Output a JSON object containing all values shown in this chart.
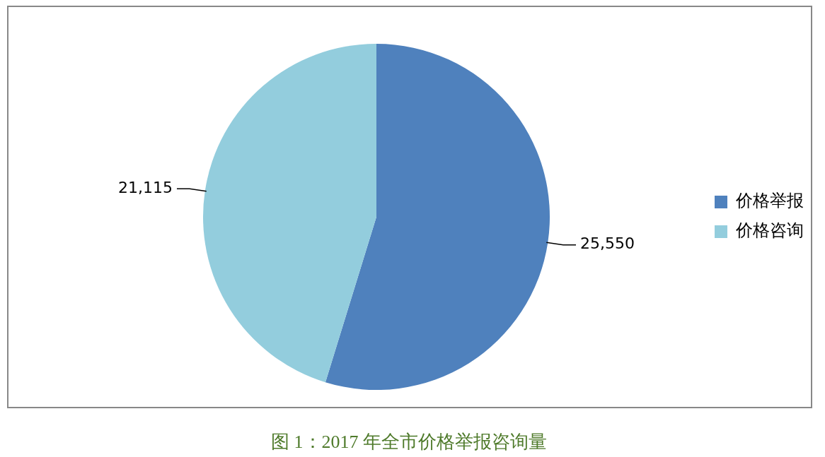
{
  "chart_data": {
    "type": "pie",
    "title": "图 1：2017 年全市价格举报咨询量",
    "categories": [
      "价格举报",
      "价格咨询"
    ],
    "values": [
      25550,
      21115
    ],
    "colors": [
      "#4f81bd",
      "#93cddd"
    ],
    "value_labels": [
      "25,550",
      "21,115"
    ],
    "legend": "right"
  }
}
